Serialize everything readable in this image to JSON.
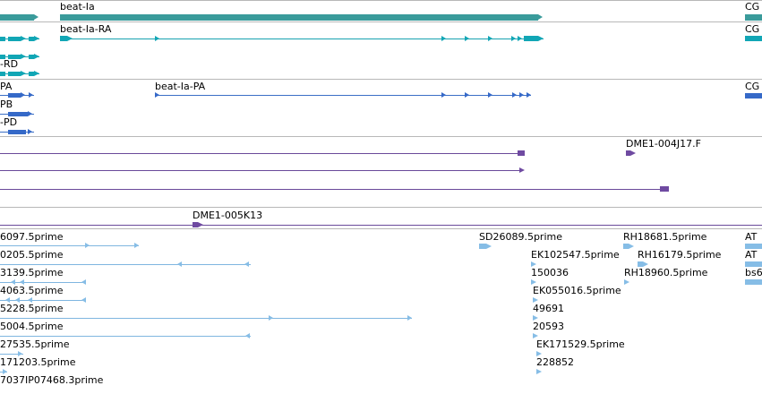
{
  "genes": {
    "gene_label": "beat-Ia",
    "gene_right_label": "CG",
    "rna_label": "beat-Ia-RA",
    "rna_right_label": "CG",
    "rna_left_label": "-RD",
    "protein_label": "beat-Ia-PA",
    "protein_right_label": "CG",
    "protein_left_a": "PA",
    "protein_left_b": "PB",
    "protein_left_d": "-PD"
  },
  "clones": {
    "dme1_004j17": "DME1-004J17.F",
    "dme1_005k13": "DME1-005K13"
  },
  "ests": {
    "left": [
      "6097.5prime",
      "0205.5prime",
      "3139.5prime",
      "4063.5prime",
      "5228.5prime",
      "5004.5prime",
      "27535.5prime",
      "171203.5prime",
      "7037IP07468.3prime"
    ],
    "mid": [
      "SD26089.5prime",
      "EK102547.5prime",
      "150036",
      "EK055016.5prime",
      "49691",
      "20593",
      "EK171529.5prime",
      "228852"
    ],
    "right": [
      "RH18681.5prime",
      "RH16179.5prime",
      "RH18960.5prime"
    ],
    "far_right": [
      "AT",
      "AT",
      "bs6"
    ]
  },
  "colors": {
    "gene": "#3a9b9b",
    "mrna": "#11a6b5",
    "protein": "#3569c8",
    "clone": "#6f4aa1",
    "est": "#86bde6"
  }
}
